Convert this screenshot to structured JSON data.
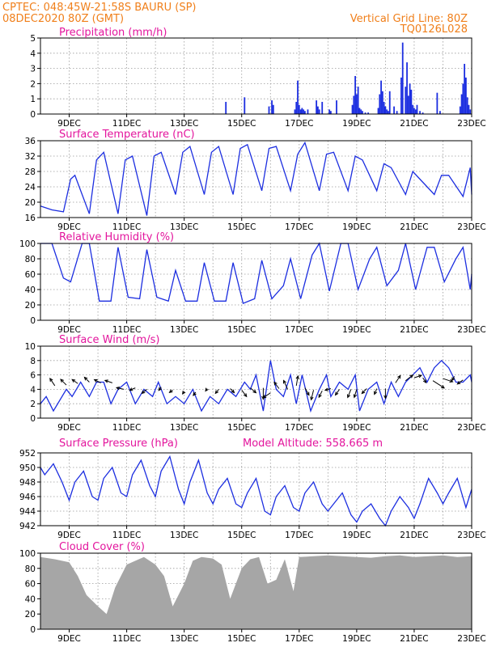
{
  "header": {
    "line1": "CPTEC:   048:45W-21:58S   BAURU (SP)",
    "line2": "08DEC2020 80Z (GMT)",
    "grid_line": "Vertical Grid Line: 80Z",
    "run_code": "TQ0126L028",
    "model_altitude": "Model Altitude: 558.665 m"
  },
  "colors": {
    "header": "#f07f1a",
    "title": "#e3159d",
    "series": "#1c2ee0",
    "cloud": "#a6a6a6"
  },
  "chart_data": [
    {
      "type": "bar",
      "title": "Precipitation (mm/h)",
      "x_labels": [
        "9DEC",
        "11DEC",
        "13DEC",
        "15DEC",
        "17DEC",
        "19DEC",
        "21DEC",
        "23DEC"
      ],
      "x_label_days": [
        9,
        11,
        13,
        15,
        17,
        19,
        21,
        23
      ],
      "xlim": [
        8.0,
        23.0
      ],
      "ylim": [
        0,
        5
      ],
      "yticks": [
        0,
        1,
        2,
        3,
        4,
        5
      ],
      "x": [
        14.45,
        15.1,
        15.95,
        16.05,
        16.1,
        16.85,
        16.9,
        16.95,
        17.0,
        17.05,
        17.1,
        17.15,
        17.2,
        17.3,
        17.6,
        17.65,
        17.7,
        17.8,
        18.05,
        18.1,
        18.3,
        18.85,
        18.9,
        18.95,
        19.0,
        19.05,
        19.1,
        19.15,
        19.2,
        19.3,
        19.4,
        19.75,
        19.8,
        19.85,
        19.9,
        19.95,
        20.0,
        20.05,
        20.1,
        20.15,
        20.3,
        20.4,
        20.55,
        20.6,
        20.7,
        20.75,
        20.8,
        20.85,
        20.9,
        20.95,
        21.0,
        21.05,
        21.1,
        21.2,
        21.3,
        21.8,
        21.9,
        22.6,
        22.65,
        22.7,
        22.75,
        22.8,
        22.85,
        22.9,
        22.95
      ],
      "values": [
        0.8,
        1.1,
        0.5,
        0.9,
        0.6,
        0.3,
        0.8,
        2.2,
        0.6,
        0.3,
        0.4,
        0.3,
        0.2,
        0.3,
        0.9,
        0.5,
        0.3,
        0.8,
        0.3,
        0.2,
        0.9,
        0.6,
        1.2,
        2.5,
        1.3,
        1.8,
        0.4,
        0.3,
        0.2,
        0.1,
        0.1,
        0.4,
        1.3,
        2.2,
        1.5,
        0.8,
        0.5,
        0.3,
        0.2,
        1.5,
        0.5,
        0.2,
        2.4,
        4.7,
        1.8,
        3.4,
        1.2,
        2.0,
        1.6,
        0.6,
        0.4,
        0.3,
        0.6,
        0.2,
        0.1,
        1.4,
        0.2,
        0.5,
        1.3,
        2.0,
        3.3,
        2.4,
        1.1,
        0.6,
        0.3
      ]
    },
    {
      "type": "line",
      "title": "Surface Temperature (nC)",
      "x_labels": [
        "9DEC",
        "11DEC",
        "13DEC",
        "15DEC",
        "17DEC",
        "19DEC",
        "21DEC",
        "23DEC"
      ],
      "x_label_days": [
        9,
        11,
        13,
        15,
        17,
        19,
        21,
        23
      ],
      "xlim": [
        8.0,
        23.0
      ],
      "ylim": [
        16,
        36
      ],
      "yticks": [
        16,
        20,
        24,
        28,
        32,
        36
      ],
      "x": [
        8.0,
        8.4,
        8.8,
        9.05,
        9.2,
        9.7,
        9.95,
        10.2,
        10.7,
        10.95,
        11.2,
        11.7,
        11.95,
        12.2,
        12.7,
        12.95,
        13.2,
        13.7,
        13.95,
        14.2,
        14.7,
        14.95,
        15.2,
        15.7,
        15.95,
        16.2,
        16.7,
        16.95,
        17.2,
        17.7,
        17.95,
        18.2,
        18.7,
        18.95,
        19.2,
        19.7,
        19.95,
        20.2,
        20.7,
        20.95,
        21.2,
        21.7,
        21.95,
        22.2,
        22.7,
        22.95,
        23.0
      ],
      "values": [
        19,
        18,
        17.5,
        26,
        27,
        17,
        31,
        33,
        17,
        31,
        32,
        16.5,
        32,
        33,
        22,
        33,
        34.5,
        22,
        33,
        34.5,
        22,
        34,
        35,
        23,
        34,
        34.5,
        23,
        32.5,
        35.5,
        23,
        32.5,
        33,
        23,
        32,
        31,
        23,
        30,
        29,
        22,
        28,
        26,
        22,
        27,
        27,
        21.5,
        29,
        22
      ]
    },
    {
      "type": "line",
      "title": "Relative Humidity (%)",
      "x_labels": [
        "9DEC",
        "11DEC",
        "13DEC",
        "15DEC",
        "17DEC",
        "19DEC",
        "21DEC",
        "23DEC"
      ],
      "x_label_days": [
        9,
        11,
        13,
        15,
        17,
        19,
        21,
        23
      ],
      "xlim": [
        8.0,
        23.0
      ],
      "ylim": [
        0,
        100
      ],
      "yticks": [
        0,
        20,
        40,
        60,
        80,
        100
      ],
      "x": [
        8.0,
        8.4,
        8.8,
        9.05,
        9.45,
        9.7,
        10.05,
        10.45,
        10.7,
        11.05,
        11.45,
        11.7,
        12.05,
        12.45,
        12.7,
        13.05,
        13.45,
        13.7,
        14.05,
        14.45,
        14.7,
        15.05,
        15.45,
        15.7,
        16.05,
        16.45,
        16.7,
        17.05,
        17.45,
        17.7,
        18.05,
        18.45,
        18.7,
        19.05,
        19.45,
        19.7,
        20.05,
        20.45,
        20.7,
        21.05,
        21.45,
        21.7,
        22.05,
        22.45,
        22.7,
        22.95,
        23.0
      ],
      "values": [
        100,
        100,
        55,
        50,
        100,
        100,
        25,
        25,
        95,
        30,
        28,
        92,
        30,
        25,
        65,
        25,
        25,
        75,
        25,
        25,
        75,
        22,
        28,
        78,
        28,
        45,
        80,
        28,
        85,
        100,
        38,
        100,
        100,
        40,
        80,
        95,
        45,
        65,
        100,
        40,
        95,
        95,
        50,
        80,
        95,
        40,
        60
      ]
    },
    {
      "type": "line",
      "title": "Surface Wind (m/s)",
      "x_labels": [
        "9DEC",
        "11DEC",
        "13DEC",
        "15DEC",
        "17DEC",
        "19DEC",
        "21DEC",
        "23DEC"
      ],
      "x_label_days": [
        9,
        11,
        13,
        15,
        17,
        19,
        21,
        23
      ],
      "xlim": [
        8.0,
        23.0
      ],
      "ylim": [
        0,
        10
      ],
      "yticks": [
        0,
        2,
        4,
        6,
        8,
        10
      ],
      "x": [
        8.0,
        8.2,
        8.45,
        8.9,
        9.1,
        9.4,
        9.7,
        9.95,
        10.2,
        10.45,
        10.7,
        11.0,
        11.3,
        11.6,
        11.9,
        12.1,
        12.4,
        12.7,
        13.0,
        13.3,
        13.6,
        13.9,
        14.2,
        14.5,
        14.8,
        15.1,
        15.3,
        15.5,
        15.75,
        16.0,
        16.2,
        16.45,
        16.7,
        16.9,
        17.1,
        17.4,
        17.7,
        17.95,
        18.1,
        18.4,
        18.7,
        18.95,
        19.1,
        19.4,
        19.7,
        19.95,
        20.2,
        20.45,
        20.7,
        20.95,
        21.2,
        21.45,
        21.7,
        21.95,
        22.2,
        22.45,
        22.7,
        22.95,
        23.0
      ],
      "values": [
        2,
        3,
        1,
        4,
        3,
        5,
        3,
        5,
        5,
        2,
        4,
        5,
        2,
        4,
        3,
        5,
        2,
        3,
        2,
        4,
        1,
        3,
        2,
        4,
        3,
        5,
        4,
        6,
        1,
        8,
        4,
        3,
        6,
        2,
        6,
        1,
        4,
        6,
        3,
        5,
        4,
        6,
        1,
        4,
        5,
        2,
        5,
        3,
        5,
        6,
        7,
        5,
        7,
        8,
        7,
        5,
        5,
        6,
        5
      ],
      "arrows": [
        {
          "x": 8.5,
          "y": 4.5,
          "u": -0.6,
          "v": 0.9
        },
        {
          "x": 8.9,
          "y": 4.6,
          "u": -0.7,
          "v": 0.7
        },
        {
          "x": 9.3,
          "y": 4.8,
          "u": -0.7,
          "v": 0.5
        },
        {
          "x": 9.7,
          "y": 5.0,
          "u": -0.6,
          "v": 0.6
        },
        {
          "x": 10.1,
          "y": 4.9,
          "u": -0.8,
          "v": 0.4
        },
        {
          "x": 10.5,
          "y": 4.9,
          "u": -0.9,
          "v": 0.3
        },
        {
          "x": 10.9,
          "y": 4.0,
          "u": -0.9,
          "v": 0.2
        },
        {
          "x": 11.3,
          "y": 4.2,
          "u": -0.7,
          "v": -0.3
        },
        {
          "x": 11.7,
          "y": 4.0,
          "u": -0.6,
          "v": -0.5
        },
        {
          "x": 12.2,
          "y": 4.3,
          "u": -0.3,
          "v": -0.4
        },
        {
          "x": 12.6,
          "y": 3.9,
          "u": -0.4,
          "v": -0.3
        },
        {
          "x": 13.0,
          "y": 3.7,
          "u": -0.2,
          "v": -0.3
        },
        {
          "x": 13.4,
          "y": 3.6,
          "u": -0.3,
          "v": -0.4
        },
        {
          "x": 13.8,
          "y": 4.1,
          "u": -0.2,
          "v": -0.3
        },
        {
          "x": 14.2,
          "y": 4.0,
          "u": -0.4,
          "v": -0.5
        },
        {
          "x": 14.6,
          "y": 4.1,
          "u": 0.5,
          "v": -0.5
        },
        {
          "x": 15.0,
          "y": 3.9,
          "u": 0.6,
          "v": -0.8
        },
        {
          "x": 15.3,
          "y": 4.2,
          "u": 0.7,
          "v": -0.6
        },
        {
          "x": 15.75,
          "y": 4.2,
          "u": 0.0,
          "v": -1.4
        },
        {
          "x": 16.0,
          "y": 3.5,
          "u": -0.9,
          "v": -0.6
        },
        {
          "x": 16.3,
          "y": 4.1,
          "u": -0.6,
          "v": 0.8
        },
        {
          "x": 16.6,
          "y": 4.0,
          "u": -0.5,
          "v": 1.1
        },
        {
          "x": 16.9,
          "y": 4.5,
          "u": 0.2,
          "v": 1.2
        },
        {
          "x": 17.2,
          "y": 4.2,
          "u": 0.5,
          "v": -0.9
        },
        {
          "x": 17.5,
          "y": 3.9,
          "u": -0.3,
          "v": -1.2
        },
        {
          "x": 17.8,
          "y": 3.8,
          "u": -0.4,
          "v": -0.8
        },
        {
          "x": 18.1,
          "y": 4.1,
          "u": -0.7,
          "v": -0.2
        },
        {
          "x": 18.4,
          "y": 4.0,
          "u": -0.5,
          "v": -0.7
        },
        {
          "x": 18.8,
          "y": 4.0,
          "u": -0.4,
          "v": -1.0
        },
        {
          "x": 19.0,
          "y": 4.0,
          "u": -0.3,
          "v": -1.0
        },
        {
          "x": 19.35,
          "y": 4.1,
          "u": -0.6,
          "v": -0.6
        },
        {
          "x": 19.7,
          "y": 4.1,
          "u": -0.3,
          "v": -0.7
        },
        {
          "x": 20.0,
          "y": 4.1,
          "u": 0.0,
          "v": -1.2
        },
        {
          "x": 20.35,
          "y": 4.9,
          "u": 0.6,
          "v": 0.9
        },
        {
          "x": 20.7,
          "y": 5.2,
          "u": 0.9,
          "v": 0.7
        },
        {
          "x": 21.0,
          "y": 5.6,
          "u": 0.9,
          "v": 0.3
        },
        {
          "x": 21.3,
          "y": 5.6,
          "u": 0.4,
          "v": -0.6
        },
        {
          "x": 21.65,
          "y": 5.2,
          "u": 1.4,
          "v": -0.9
        },
        {
          "x": 22.0,
          "y": 5.5,
          "u": 1.2,
          "v": -0.4
        },
        {
          "x": 22.4,
          "y": 5.8,
          "u": -0.3,
          "v": -0.5
        },
        {
          "x": 22.7,
          "y": 5.3,
          "u": -0.7,
          "v": -0.5
        }
      ]
    },
    {
      "type": "line",
      "title": "Surface Pressure (hPa)",
      "x_labels": [
        "9DEC",
        "11DEC",
        "13DEC",
        "15DEC",
        "17DEC",
        "19DEC",
        "21DEC",
        "23DEC"
      ],
      "x_label_days": [
        9,
        11,
        13,
        15,
        17,
        19,
        21,
        23
      ],
      "xlim": [
        8.0,
        23.0
      ],
      "ylim": [
        942,
        952
      ],
      "yticks": [
        942,
        944,
        946,
        948,
        950,
        952
      ],
      "x": [
        8.0,
        8.15,
        8.45,
        8.75,
        9.0,
        9.2,
        9.5,
        9.8,
        10.0,
        10.2,
        10.5,
        10.8,
        11.0,
        11.2,
        11.5,
        11.8,
        12.0,
        12.2,
        12.5,
        12.8,
        13.0,
        13.2,
        13.5,
        13.8,
        14.0,
        14.2,
        14.5,
        14.8,
        15.0,
        15.2,
        15.5,
        15.8,
        16.0,
        16.2,
        16.5,
        16.8,
        17.0,
        17.2,
        17.5,
        17.8,
        18.0,
        18.2,
        18.5,
        18.8,
        19.0,
        19.2,
        19.5,
        19.8,
        20.0,
        20.2,
        20.5,
        20.8,
        21.0,
        21.2,
        21.5,
        21.8,
        22.0,
        22.2,
        22.5,
        22.8,
        23.0
      ],
      "values": [
        950,
        949,
        950.5,
        948,
        945.5,
        948,
        949.5,
        946,
        945.5,
        948.5,
        950,
        946.5,
        946,
        949,
        951,
        947.5,
        946,
        949.5,
        951.5,
        947,
        945,
        948,
        951,
        946.5,
        945,
        947,
        948.5,
        945,
        944.5,
        946.5,
        948.5,
        944,
        943.5,
        946,
        947.5,
        944.5,
        944,
        946.5,
        948,
        945,
        944,
        945,
        946.5,
        943.5,
        942.5,
        944,
        945,
        943,
        942,
        944,
        946,
        944.5,
        943,
        945,
        948.5,
        946.5,
        945,
        946.5,
        948.5,
        944.5,
        947
      ]
    },
    {
      "type": "area",
      "title": "Cloud Cover (%)",
      "x_labels": [
        "9DEC",
        "11DEC",
        "13DEC",
        "15DEC",
        "17DEC",
        "19DEC",
        "21DEC",
        "23DEC"
      ],
      "x_label_days": [
        9,
        11,
        13,
        15,
        17,
        19,
        21,
        23
      ],
      "xlim": [
        8.0,
        23.0
      ],
      "ylim": [
        0,
        100
      ],
      "yticks": [
        0,
        20,
        40,
        60,
        80,
        100
      ],
      "x": [
        8.0,
        8.5,
        9.0,
        9.3,
        9.6,
        10.0,
        10.3,
        10.6,
        11.0,
        11.3,
        11.6,
        12.0,
        12.3,
        12.6,
        13.0,
        13.3,
        13.6,
        14.0,
        14.3,
        14.6,
        15.0,
        15.3,
        15.6,
        15.9,
        16.2,
        16.5,
        16.8,
        17.0,
        17.5,
        18.0,
        18.5,
        19.0,
        19.5,
        20.0,
        20.5,
        21.0,
        21.5,
        22.0,
        22.5,
        23.0
      ],
      "values": [
        95,
        92,
        88,
        70,
        45,
        30,
        20,
        55,
        85,
        90,
        95,
        85,
        70,
        30,
        60,
        90,
        95,
        93,
        85,
        40,
        80,
        92,
        95,
        60,
        65,
        92,
        50,
        95,
        96,
        97,
        96,
        95,
        94,
        96,
        97,
        95,
        96,
        97,
        95,
        96
      ]
    }
  ]
}
